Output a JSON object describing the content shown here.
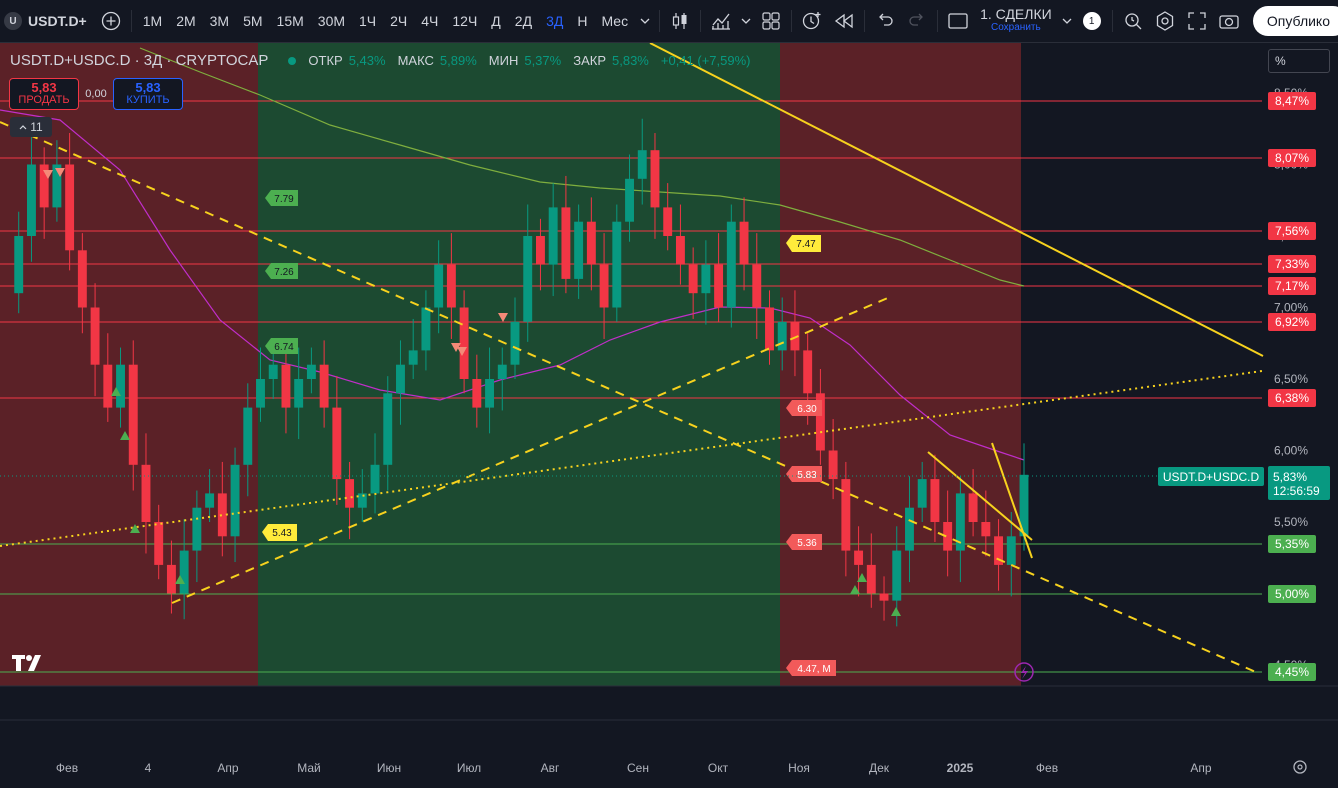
{
  "toolbar": {
    "symbol": "USDT.D+",
    "intervals": [
      "1М",
      "2М",
      "3М",
      "5М",
      "15М",
      "30М",
      "1Ч",
      "2Ч",
      "4Ч",
      "12Ч",
      "Д",
      "2Д",
      "3Д",
      "Н",
      "Мес"
    ],
    "active_interval": "3Д",
    "layout_name": "1. СДЕЛКИ",
    "layout_save": "Сохранить",
    "alerts_badge": "1",
    "publish_label": "Опублико"
  },
  "legend": {
    "symbol_logo": "U",
    "title": "USDT.D+USDC.D · 3Д · CRYPTOCAP",
    "open_label": "ОТКР",
    "open": "5,43%",
    "high_label": "МАКС",
    "high": "5,89%",
    "low_label": "МИН",
    "low": "5,37%",
    "close_label": "ЗАКР",
    "close": "5,83%",
    "change": "+0,41 (+7,59%)"
  },
  "trade": {
    "sell_price": "5,83",
    "sell_label": "ПРОДАТЬ",
    "spread": "0,00",
    "buy_price": "5,83",
    "buy_label": "КУПИТЬ"
  },
  "indicators_collapsed_count": "11",
  "price_axis": {
    "scale_label": "%",
    "ticks": [
      "8,50%",
      "8,00%",
      "7,50%",
      "7,00%",
      "6,50%",
      "6,00%",
      "5,50%",
      "5,00%",
      "4,50%"
    ],
    "symbol_tag": "USDT.D+USDC.D",
    "last_price": "5,83%",
    "countdown": "12:56:59"
  },
  "horizontal_levels": [
    {
      "label": "8,47%",
      "color": "#f23645"
    },
    {
      "label": "8,07%",
      "color": "#f23645"
    },
    {
      "label": "7,56%",
      "color": "#f23645"
    },
    {
      "label": "7,33%",
      "color": "#f23645"
    },
    {
      "label": "7,17%",
      "color": "#f23645"
    },
    {
      "label": "6,92%",
      "color": "#f23645"
    },
    {
      "label": "6,38%",
      "color": "#f23645"
    },
    {
      "label": "5,35%",
      "color": "#4caf50"
    },
    {
      "label": "5,00%",
      "color": "#4caf50"
    },
    {
      "label": "4,45%",
      "color": "#4caf50"
    }
  ],
  "chart_labels": {
    "green": [
      "7.79",
      "7.26",
      "6.74"
    ],
    "yellow": [
      "7.47",
      "5.43"
    ],
    "red": [
      "6.30",
      "5.83",
      "5.36",
      "4.47, M"
    ]
  },
  "time_axis": [
    "Фев",
    "4",
    "Апр",
    "Май",
    "Июн",
    "Июл",
    "Авг",
    "Сен",
    "Окт",
    "Ноя",
    "Дек",
    "2025",
    "Фев",
    "Апр"
  ],
  "chart_data": {
    "type": "candlestick",
    "title": "USDT.D+USDC.D · 3Д · CRYPTOCAP",
    "ylim": [
      4.4,
      8.7
    ],
    "y_unit": "%",
    "x_range": [
      "2024-01",
      "2025-04"
    ],
    "ohlc_summary": {
      "open": 5.43,
      "high": 5.89,
      "low": 5.37,
      "close": 5.83,
      "change": 0.41,
      "change_pct": 7.59
    },
    "horizontal_levels": [
      8.47,
      8.07,
      7.56,
      7.33,
      7.17,
      6.92,
      6.38,
      5.35,
      5.0,
      4.45
    ],
    "price_path": [
      7.1,
      7.5,
      8.0,
      7.7,
      8.0,
      7.4,
      7.0,
      6.6,
      6.3,
      6.6,
      5.9,
      5.5,
      5.2,
      5.0,
      5.3,
      5.6,
      5.7,
      5.4,
      5.9,
      6.3,
      6.5,
      6.6,
      6.3,
      6.5,
      6.6,
      6.3,
      5.8,
      5.6,
      5.7,
      5.9,
      6.4,
      6.6,
      6.7,
      7.0,
      7.3,
      7.0,
      6.5,
      6.3,
      6.5,
      6.6,
      6.9,
      7.5,
      7.3,
      7.7,
      7.2,
      7.6,
      7.3,
      7.0,
      7.6,
      7.9,
      8.1,
      7.7,
      7.5,
      7.3,
      7.1,
      7.3,
      7.0,
      7.6,
      7.3,
      7.0,
      6.7,
      6.9,
      6.7,
      6.4,
      6.0,
      5.8,
      5.3,
      5.2,
      5.0,
      4.95,
      5.3,
      5.6,
      5.8,
      5.5,
      5.3,
      5.7,
      5.5,
      5.4,
      5.2,
      5.4,
      5.83
    ]
  }
}
